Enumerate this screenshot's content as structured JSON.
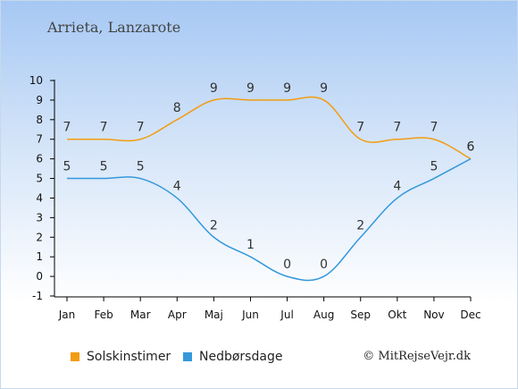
{
  "location": "Arrieta, Lanzarote",
  "copyright": "© MitRejseVejr.dk",
  "colors": {
    "sun": "#f39c12",
    "rain": "#3498db"
  },
  "chart_data": {
    "type": "line",
    "categories": [
      "Jan",
      "Feb",
      "Mar",
      "Apr",
      "Maj",
      "Jun",
      "Jul",
      "Aug",
      "Sep",
      "Okt",
      "Nov",
      "Dec"
    ],
    "ylim": [
      -1,
      10
    ],
    "yticks": [
      "-1",
      "0",
      "1",
      "2",
      "3",
      "4",
      "5",
      "6",
      "7",
      "8",
      "9",
      "10"
    ],
    "grid": false,
    "legend_position": "bottom",
    "series": [
      {
        "name": "Solskinstimer",
        "values": [
          7,
          7,
          7,
          8,
          9,
          9,
          9,
          9,
          7,
          7,
          7,
          6
        ]
      },
      {
        "name": "Nedbørsdage",
        "values": [
          5,
          5,
          5,
          4,
          2,
          1,
          0,
          0,
          2,
          4,
          5,
          6
        ]
      }
    ]
  }
}
